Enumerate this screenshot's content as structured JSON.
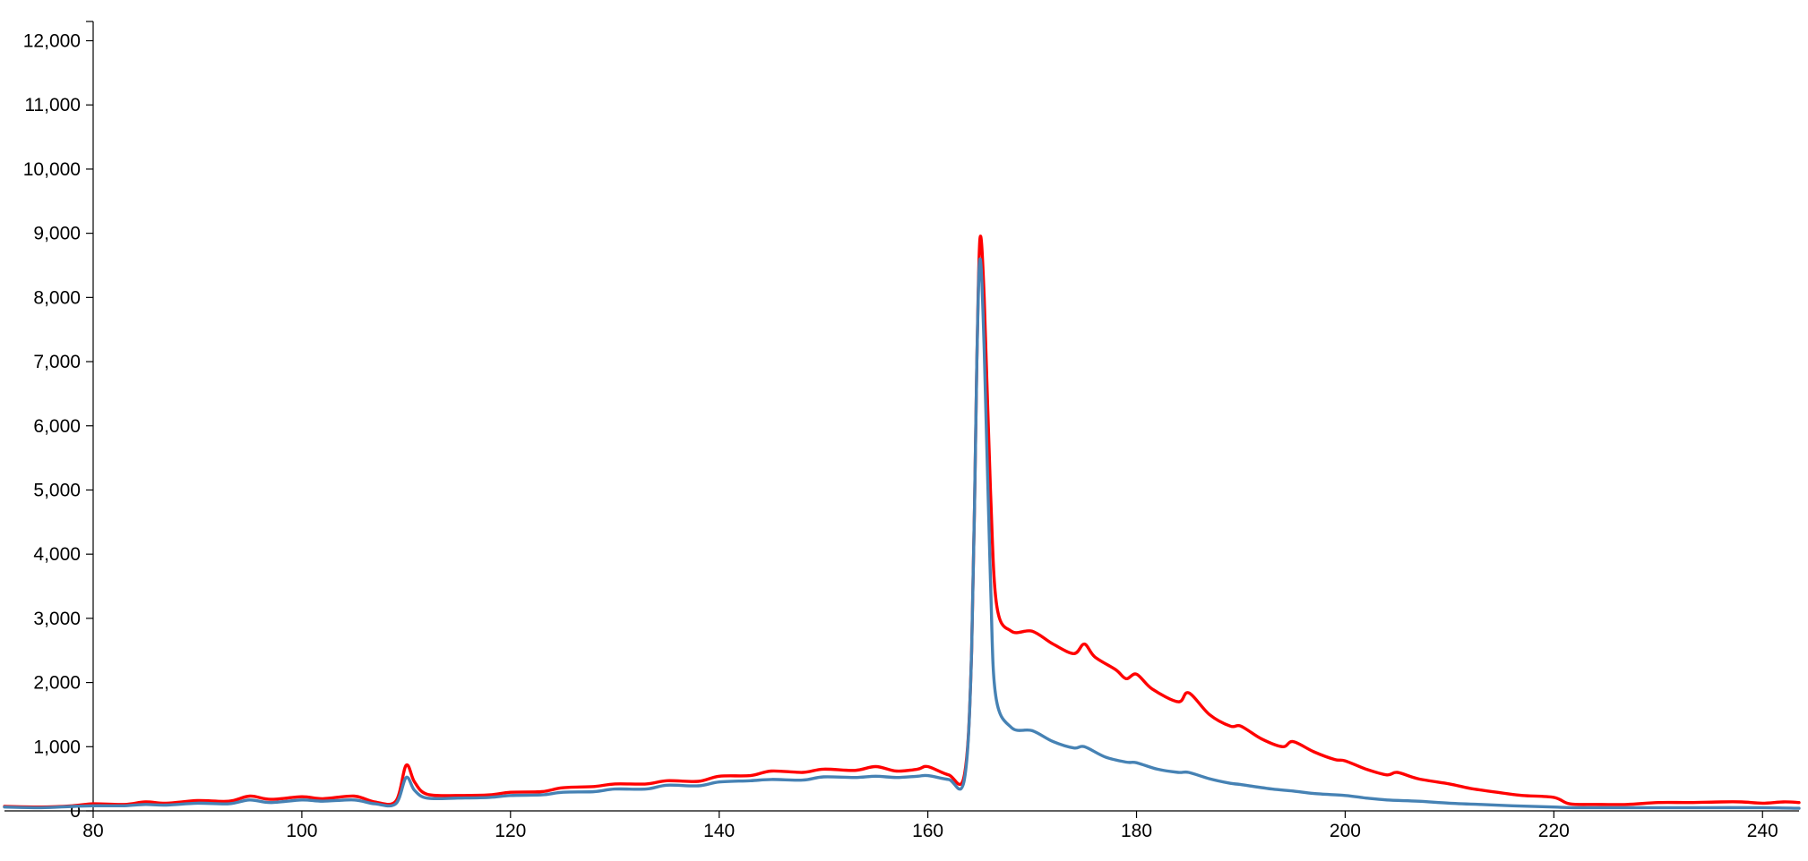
{
  "chart_data": {
    "type": "line",
    "title": "",
    "xlabel": "",
    "ylabel": "",
    "xlim": [
      71.5,
      243.5
    ],
    "ylim": [
      0,
      12300
    ],
    "grid": false,
    "x_ticks": [
      80,
      100,
      120,
      140,
      160,
      180,
      200,
      220,
      240
    ],
    "x_tick_labels": [
      "80",
      "100",
      "120",
      "140",
      "160",
      "180",
      "200",
      "220",
      "240"
    ],
    "y_ticks": [
      0,
      1000,
      2000,
      3000,
      4000,
      5000,
      6000,
      7000,
      8000,
      9000,
      10000,
      11000,
      12000
    ],
    "y_tick_labels": [
      "0",
      "1,000",
      "2,000",
      "3,000",
      "4,000",
      "5,000",
      "6,000",
      "7,000",
      "8,000",
      "9,000",
      "10,000",
      "11,000",
      "12,000"
    ],
    "series": [
      {
        "color": "#ff0000",
        "points": [
          [
            71.5,
            70
          ],
          [
            75,
            60
          ],
          [
            78,
            80
          ],
          [
            80,
            110
          ],
          [
            83,
            100
          ],
          [
            85,
            140
          ],
          [
            87,
            120
          ],
          [
            90,
            160
          ],
          [
            93,
            150
          ],
          [
            95,
            230
          ],
          [
            97,
            180
          ],
          [
            100,
            220
          ],
          [
            102,
            190
          ],
          [
            105,
            230
          ],
          [
            107,
            140
          ],
          [
            109,
            150
          ],
          [
            110,
            710
          ],
          [
            110.8,
            450
          ],
          [
            112,
            260
          ],
          [
            115,
            240
          ],
          [
            118,
            250
          ],
          [
            120,
            290
          ],
          [
            123,
            300
          ],
          [
            125,
            360
          ],
          [
            128,
            380
          ],
          [
            130,
            420
          ],
          [
            133,
            420
          ],
          [
            135,
            470
          ],
          [
            138,
            460
          ],
          [
            140,
            540
          ],
          [
            143,
            550
          ],
          [
            145,
            620
          ],
          [
            148,
            600
          ],
          [
            150,
            650
          ],
          [
            153,
            630
          ],
          [
            155,
            690
          ],
          [
            157,
            620
          ],
          [
            159,
            650
          ],
          [
            160,
            690
          ],
          [
            162,
            560
          ],
          [
            163.5,
            560
          ],
          [
            164.2,
            2500
          ],
          [
            164.7,
            7000
          ],
          [
            165,
            8920
          ],
          [
            165.4,
            8000
          ],
          [
            166,
            5000
          ],
          [
            166.6,
            3200
          ],
          [
            168,
            2800
          ],
          [
            170,
            2800
          ],
          [
            172,
            2600
          ],
          [
            174,
            2450
          ],
          [
            175,
            2600
          ],
          [
            176,
            2400
          ],
          [
            178,
            2200
          ],
          [
            179,
            2060
          ],
          [
            180,
            2130
          ],
          [
            181.5,
            1900
          ],
          [
            184,
            1700
          ],
          [
            185,
            1840
          ],
          [
            187,
            1500
          ],
          [
            189,
            1320
          ],
          [
            190,
            1320
          ],
          [
            192,
            1120
          ],
          [
            194,
            1000
          ],
          [
            195,
            1080
          ],
          [
            197,
            920
          ],
          [
            199,
            800
          ],
          [
            200,
            780
          ],
          [
            202,
            650
          ],
          [
            204,
            560
          ],
          [
            205,
            600
          ],
          [
            207,
            500
          ],
          [
            210,
            420
          ],
          [
            212,
            350
          ],
          [
            215,
            280
          ],
          [
            217,
            240
          ],
          [
            220,
            210
          ],
          [
            221.5,
            110
          ],
          [
            224,
            100
          ],
          [
            227,
            100
          ],
          [
            230,
            130
          ],
          [
            233,
            130
          ],
          [
            236,
            140
          ],
          [
            238,
            140
          ],
          [
            240,
            120
          ],
          [
            242,
            140
          ],
          [
            243.5,
            130
          ]
        ]
      },
      {
        "color": "#4682b4",
        "points": [
          [
            71.5,
            60
          ],
          [
            75,
            50
          ],
          [
            78,
            70
          ],
          [
            80,
            80
          ],
          [
            83,
            80
          ],
          [
            85,
            100
          ],
          [
            87,
            90
          ],
          [
            90,
            120
          ],
          [
            93,
            110
          ],
          [
            95,
            170
          ],
          [
            97,
            130
          ],
          [
            100,
            170
          ],
          [
            102,
            150
          ],
          [
            105,
            170
          ],
          [
            107,
            110
          ],
          [
            109,
            110
          ],
          [
            110,
            520
          ],
          [
            110.8,
            320
          ],
          [
            112,
            200
          ],
          [
            115,
            200
          ],
          [
            118,
            210
          ],
          [
            120,
            240
          ],
          [
            123,
            250
          ],
          [
            125,
            290
          ],
          [
            128,
            300
          ],
          [
            130,
            340
          ],
          [
            133,
            340
          ],
          [
            135,
            400
          ],
          [
            138,
            390
          ],
          [
            140,
            450
          ],
          [
            143,
            470
          ],
          [
            145,
            490
          ],
          [
            148,
            480
          ],
          [
            150,
            530
          ],
          [
            153,
            520
          ],
          [
            155,
            540
          ],
          [
            157,
            520
          ],
          [
            159,
            540
          ],
          [
            160,
            550
          ],
          [
            162,
            490
          ],
          [
            163.5,
            490
          ],
          [
            164.2,
            2500
          ],
          [
            164.7,
            7000
          ],
          [
            165,
            8600
          ],
          [
            165.4,
            7200
          ],
          [
            166,
            3600
          ],
          [
            166.5,
            1800
          ],
          [
            168,
            1300
          ],
          [
            170,
            1250
          ],
          [
            172,
            1080
          ],
          [
            174,
            980
          ],
          [
            175,
            1000
          ],
          [
            177,
            840
          ],
          [
            179,
            760
          ],
          [
            180,
            750
          ],
          [
            182,
            650
          ],
          [
            184,
            600
          ],
          [
            185,
            600
          ],
          [
            187,
            500
          ],
          [
            189,
            430
          ],
          [
            190,
            410
          ],
          [
            193,
            340
          ],
          [
            195,
            310
          ],
          [
            197,
            270
          ],
          [
            200,
            240
          ],
          [
            202,
            200
          ],
          [
            204,
            170
          ],
          [
            207,
            150
          ],
          [
            210,
            120
          ],
          [
            213,
            100
          ],
          [
            216,
            80
          ],
          [
            220,
            60
          ],
          [
            222,
            50
          ],
          [
            225,
            50
          ],
          [
            230,
            50
          ],
          [
            235,
            50
          ],
          [
            240,
            50
          ],
          [
            243.5,
            40
          ]
        ]
      }
    ]
  }
}
